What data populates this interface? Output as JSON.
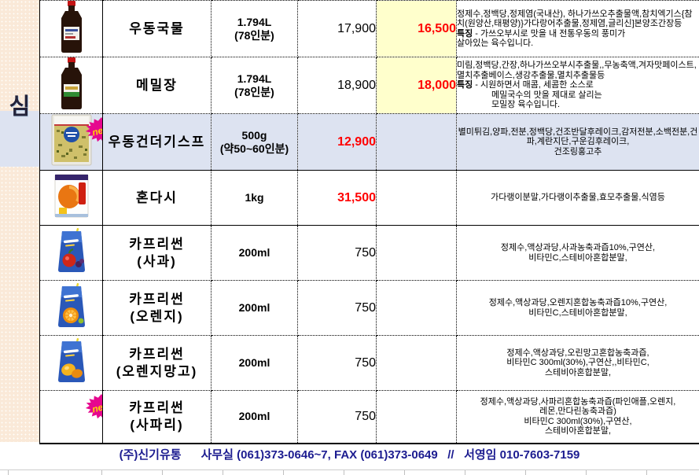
{
  "sidebar": {
    "label": "심"
  },
  "colors": {
    "sale_bg": "#ffffcc",
    "highlight_row_bg": "#dde3f1",
    "price_red": "#ff0000",
    "footer_navy": "#1c1c90",
    "sidebar_bg": "#fae9d8",
    "badge_pink": "#e6078e",
    "badge_text_yellow": "#ffd400"
  },
  "table": {
    "rows": [
      {
        "image": "soy-bottle",
        "new_badge": false,
        "highlight": false,
        "solid_bottom": false,
        "name_lines": [
          "우동국물"
        ],
        "size_lines": [
          "1.794L",
          "(78인분)"
        ],
        "price": {
          "text": "17,900",
          "red": false
        },
        "sale": {
          "text": "16,500",
          "yellow": true
        },
        "desc": {
          "align": "left",
          "lines": [
            {
              "text": "정제수,정백당,정제염(국내산), 하나가쓰오추출물액,참치엑기스{참치(원양산,태평양)}가다랑어추출물,정제염,글리신]본양조간장등"
            },
            {
              "bold": "특징",
              "text": " - 가쓰오부시로 맛을 내 전통우동의 풍미가"
            },
            {
              "text": "살아있는 육수입니다."
            }
          ]
        }
      },
      {
        "image": "memiljang-bottle",
        "new_badge": false,
        "highlight": false,
        "solid_bottom": false,
        "name_lines": [
          "메밀장"
        ],
        "size_lines": [
          "1.794L",
          "(78인분)"
        ],
        "price": {
          "text": "18,900",
          "red": false
        },
        "sale": {
          "text": "18,000",
          "yellow": true
        },
        "desc": {
          "align": "left",
          "lines": [
            {
              "text": "미림,정백당,간장,하나가쓰오부시추출물,,무농축액,겨자맛페이스트,멸치추출베이스,생강추출물,멸치추출물등"
            },
            {
              "bold": "특징",
              "text": " - 시원하면서 매콤, 세콤한 소스로"
            },
            {
              "text": "메밀국수의 맛을 제대로 살리는",
              "indent": true
            },
            {
              "text": "모밀장 육수입니다.",
              "indent": true
            }
          ]
        }
      },
      {
        "image": "udon-flakes-pack",
        "new_badge": true,
        "highlight": true,
        "solid_bottom": true,
        "name_lines": [
          "우동건더기스프"
        ],
        "size_lines": [
          "500g",
          "(약50~60인분)"
        ],
        "price": {
          "text": "12,900",
          "red": true
        },
        "sale": {
          "text": "",
          "yellow": false
        },
        "desc": {
          "align": "center",
          "lines": [
            {
              "text": "별미튀김,양파,전분,정백당,건조반달후레이크,감저전분,소백전분,건파,계란지단,구운김후레이크,"
            },
            {
              "text": "건조링홍고추"
            }
          ]
        }
      },
      {
        "image": "hondashi-pack",
        "new_badge": false,
        "highlight": false,
        "solid_bottom": true,
        "name_lines": [
          "혼다시"
        ],
        "size_lines": [
          "1kg"
        ],
        "price": {
          "text": "31,500",
          "red": true
        },
        "sale": {
          "text": "",
          "yellow": false
        },
        "desc": {
          "align": "center",
          "lines": [
            {
              "text": "가다랭이분말,가다랭이추출물,효모추출물,식염등"
            }
          ]
        }
      },
      {
        "image": "caprisun-apple-pouch",
        "new_badge": false,
        "highlight": false,
        "solid_bottom": false,
        "name_lines": [
          "카프리썬",
          "(사과)"
        ],
        "size_lines": [
          "200ml"
        ],
        "price": {
          "text": "750",
          "red": false
        },
        "sale": {
          "text": "",
          "yellow": false
        },
        "desc": {
          "align": "center",
          "lines": [
            {
              "text": "정제수,액상과당,사과농축과즙10%,구연산,"
            },
            {
              "text": "비타민C,스테비아혼합분말,"
            }
          ]
        }
      },
      {
        "image": "caprisun-orange-pouch",
        "new_badge": false,
        "highlight": false,
        "solid_bottom": false,
        "name_lines": [
          "카프리썬",
          "(오렌지)"
        ],
        "size_lines": [
          "200ml"
        ],
        "price": {
          "text": "750",
          "red": false
        },
        "sale": {
          "text": "",
          "yellow": false
        },
        "desc": {
          "align": "center",
          "lines": [
            {
              "text": "정제수,액상과당,오렌지혼합농축과즙10%,구연산,"
            },
            {
              "text": "비타민C,스테비아혼합분말,"
            }
          ]
        }
      },
      {
        "image": "caprisun-mango-pouch",
        "new_badge": false,
        "highlight": false,
        "solid_bottom": false,
        "name_lines": [
          "카프리썬",
          "(오렌지망고)"
        ],
        "size_lines": [
          "200ml"
        ],
        "price": {
          "text": "750",
          "red": false
        },
        "sale": {
          "text": "",
          "yellow": false
        },
        "desc": {
          "align": "center",
          "lines": [
            {
              "text": "정제수,액상과당,오린망고혼합농축과즙,"
            },
            {
              "text": "비타민C 300ml(30%),구연산,,비타민C,"
            },
            {
              "text": "스테비아혼합분말,"
            }
          ]
        }
      },
      {
        "image": "none",
        "new_badge": true,
        "highlight": false,
        "solid_bottom": false,
        "name_lines": [
          "카프리썬",
          "(사파리)"
        ],
        "size_lines": [
          "200ml"
        ],
        "price": {
          "text": "750",
          "red": false
        },
        "sale": {
          "text": "",
          "yellow": false
        },
        "desc": {
          "align": "center",
          "lines": [
            {
              "text": "정제수,액상과당,사파리혼합농축과즙(파인애플,오렌지,"
            },
            {
              "text": "레몬,만다린농축과즙)"
            },
            {
              "text": "비타민C 300ml(30%),구연산,"
            },
            {
              "text": "스테비아혼합분말,"
            }
          ]
        }
      }
    ]
  },
  "badge_label": "new",
  "footer": {
    "text": "(주)신기유통      사무실 (061)373-0646~7, FAX (061)373-0649   //   서영임 010-7603-7159"
  }
}
